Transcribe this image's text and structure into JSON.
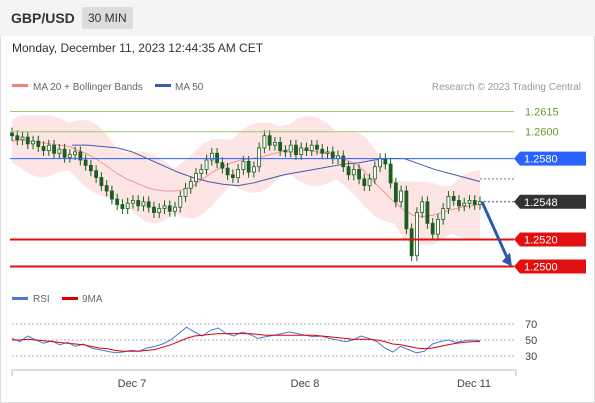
{
  "header": {
    "symbol": "GBP/USD",
    "timeframe": "30 MIN"
  },
  "datetime": "Monday, December 11, 2023 12:44:35 AM CET",
  "legend": {
    "ma20_label": "MA 20 + Bollinger Bands",
    "ma50_label": "MA 50",
    "credit": "Research © 2023 Trading Central"
  },
  "colors": {
    "bollinger_fill": "#fde2e2",
    "ma20": "#f08080",
    "ma50": "#3f5ba9",
    "resistance_light": "#9ccc65",
    "pivot_blue": "#2962ff",
    "support_red": "#e01010",
    "arrow": "#2b5aa8",
    "candle": "#1b5e20",
    "rsi": "#4a78d8",
    "rsi_ma": "#dd0000"
  },
  "chart_data": [
    {
      "type": "candlestick",
      "title": "GBP/USD 30 MIN",
      "xlabel": "",
      "ylabel": "",
      "x_ticks": [
        "Dec 7",
        "Dec 8",
        "Dec 11"
      ],
      "ylim": [
        1.249,
        1.2625
      ],
      "levels": [
        {
          "label": "1.2615",
          "value": 1.2615,
          "style": "resistance-light"
        },
        {
          "label": "1.2600",
          "value": 1.26,
          "style": "resistance-light"
        },
        {
          "label": "1.2580",
          "value": 1.258,
          "style": "pivot"
        },
        {
          "label": "1.2548",
          "value": 1.2548,
          "style": "last"
        },
        {
          "label": "1.2520",
          "value": 1.252,
          "style": "support"
        },
        {
          "label": "1.2500",
          "value": 1.25,
          "style": "support"
        }
      ],
      "close_series": [
        1.2597,
        1.2594,
        1.2596,
        1.2591,
        1.2593,
        1.2589,
        1.2586,
        1.259,
        1.2584,
        1.2587,
        1.2581,
        1.2583,
        1.2585,
        1.2579,
        1.2575,
        1.2571,
        1.2566,
        1.256,
        1.2556,
        1.255,
        1.2546,
        1.2543,
        1.2547,
        1.2549,
        1.2545,
        1.2548,
        1.2544,
        1.254,
        1.2543,
        1.2545,
        1.2541,
        1.2544,
        1.2552,
        1.2558,
        1.2563,
        1.2569,
        1.2572,
        1.2579,
        1.2584,
        1.2577,
        1.2573,
        1.2568,
        1.2566,
        1.2572,
        1.2578,
        1.257,
        1.2574,
        1.2588,
        1.2597,
        1.259,
        1.2592,
        1.2586,
        1.2585,
        1.259,
        1.2583,
        1.2588,
        1.2586,
        1.259,
        1.2587,
        1.2584,
        1.2585,
        1.258,
        1.2582,
        1.2574,
        1.2568,
        1.2572,
        1.2565,
        1.256,
        1.2565,
        1.2574,
        1.258,
        1.2576,
        1.2562,
        1.2548,
        1.2556,
        1.2528,
        1.2508,
        1.254,
        1.2548,
        1.2532,
        1.2524,
        1.2535,
        1.2543,
        1.2552,
        1.2549,
        1.2545,
        1.2547,
        1.2549,
        1.2546,
        1.2548
      ],
      "ma20_series": [
        1.2593,
        1.2594,
        1.2593,
        1.2592,
        1.2591,
        1.259,
        1.2589,
        1.2586,
        1.2583,
        1.2579,
        1.2574,
        1.2569,
        1.2565,
        1.2562,
        1.2559,
        1.2557,
        1.2556,
        1.2556,
        1.2557,
        1.256,
        1.2565,
        1.257,
        1.2574,
        1.2577,
        1.2579,
        1.258,
        1.2581,
        1.2583,
        1.2585,
        1.2587,
        1.2587,
        1.2586,
        1.2585,
        1.2584,
        1.2582,
        1.2579,
        1.2576,
        1.257,
        1.2562,
        1.2555,
        1.2548,
        1.2542,
        1.2538,
        1.2537,
        1.2538,
        1.254,
        1.2542,
        1.2544,
        1.2545,
        1.2546
      ],
      "ma50_series": [
        1.259,
        1.259,
        1.2589,
        1.2588,
        1.2585,
        1.258,
        1.2575,
        1.257,
        1.2566,
        1.2563,
        1.2561,
        1.256,
        1.2562,
        1.2565,
        1.2568,
        1.257,
        1.2572,
        1.2574,
        1.2576,
        1.2577,
        1.2579,
        1.258,
        1.258,
        1.2576,
        1.2572,
        1.2569,
        1.2566,
        1.2563
      ],
      "bollinger": {
        "upper_max": 1.2612,
        "lower_min": 1.2516
      },
      "forecast_arrow": {
        "from": 1.2548,
        "to": 1.25
      }
    },
    {
      "type": "line",
      "title": "",
      "legend": [
        "RSI",
        "9MA"
      ],
      "y_ticks": [
        70,
        50,
        30
      ],
      "ylim": [
        20,
        80
      ],
      "rsi": [
        52,
        48,
        55,
        50,
        46,
        49,
        44,
        47,
        42,
        45,
        40,
        38,
        36,
        34,
        35,
        37,
        36,
        40,
        42,
        45,
        50,
        58,
        66,
        60,
        55,
        62,
        65,
        58,
        55,
        60,
        57,
        52,
        54,
        56,
        58,
        60,
        58,
        56,
        54,
        55,
        52,
        50,
        48,
        50,
        55,
        52,
        48,
        40,
        35,
        42,
        38,
        34,
        36,
        45,
        48,
        50,
        47,
        49,
        50,
        49
      ],
      "rsi_9ma": [
        50,
        50,
        51,
        50,
        49,
        48,
        47,
        46,
        45,
        44,
        42,
        40,
        39,
        37,
        36,
        36,
        36,
        37,
        38,
        41,
        44,
        48,
        52,
        55,
        56,
        57,
        58,
        58,
        58,
        58,
        58,
        57,
        56,
        56,
        56,
        56,
        56,
        56,
        56,
        55,
        54,
        53,
        52,
        51,
        51,
        51,
        50,
        48,
        45,
        44,
        42,
        40,
        39,
        40,
        42,
        44,
        46,
        47,
        48,
        48
      ]
    }
  ]
}
